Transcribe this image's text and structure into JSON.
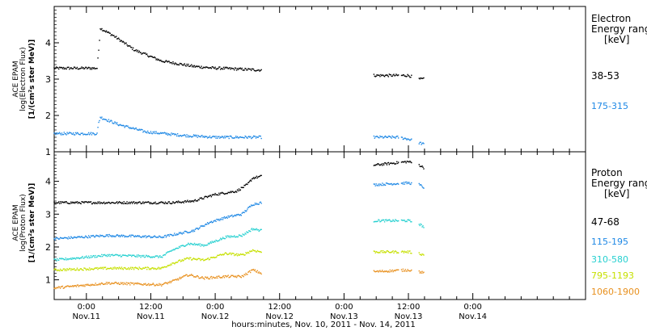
{
  "chart_data": {
    "type": "scatter",
    "x_unit": "hours",
    "x_origin": "2011-11-10 00:00",
    "xlim": [
      18,
      117
    ],
    "x_ticks": [
      {
        "h": 24,
        "time": "0:00",
        "date": "Nov.11"
      },
      {
        "h": 36,
        "time": "12:00",
        "date": "Nov.11"
      },
      {
        "h": 48,
        "time": "0:00",
        "date": "Nov.12"
      },
      {
        "h": 60,
        "time": "12:00",
        "date": "Nov.12"
      },
      {
        "h": 72,
        "time": "0:00",
        "date": "Nov.13"
      },
      {
        "h": 84,
        "time": "12:00",
        "date": "Nov.13"
      },
      {
        "h": 96,
        "time": "0:00",
        "date": "Nov.14"
      }
    ],
    "xlabel": "hours:minutes, Nov. 10, 2011 - Nov. 14, 2011",
    "panels": [
      {
        "id": "electron",
        "ylabel": [
          "ACE EPAM",
          "log(Electron Flux)",
          "[1/(cm²s ster MeV)]"
        ],
        "ylim": [
          1,
          5
        ],
        "y_ticks": [
          1,
          2,
          3,
          4
        ],
        "legend_title": [
          "Electron",
          "Energy range"
        ],
        "legend_unit": "[keV]",
        "series": [
          {
            "name": "38-53",
            "color": "#000000",
            "points": [
              [
                18,
                3.3
              ],
              [
                26,
                3.3
              ],
              [
                26.3,
                3.8
              ],
              [
                26.6,
                4.4
              ],
              [
                29,
                4.2
              ],
              [
                33,
                3.8
              ],
              [
                38,
                3.5
              ],
              [
                44,
                3.35
              ],
              [
                48,
                3.3
              ],
              [
                49,
                3.3
              ],
              [
                56,
                3.25
              ],
              [
                56.6,
                3.25
              ],
              [
                78,
                3.1
              ],
              [
                82,
                3.1
              ],
              [
                84,
                3.1
              ],
              [
                86,
                3.0
              ],
              [
                87,
                3.0
              ]
            ]
          },
          {
            "name": "175-315",
            "color": "#1e88e5",
            "points": [
              [
                18,
                1.5
              ],
              [
                26,
                1.5
              ],
              [
                26.3,
                1.8
              ],
              [
                26.6,
                1.95
              ],
              [
                30,
                1.75
              ],
              [
                35,
                1.55
              ],
              [
                42,
                1.45
              ],
              [
                48,
                1.4
              ],
              [
                56.6,
                1.4
              ],
              [
                78,
                1.4
              ],
              [
                82,
                1.4
              ],
              [
                84,
                1.35
              ],
              [
                87,
                1.2
              ]
            ]
          }
        ]
      },
      {
        "id": "proton",
        "ylabel": [
          "ACE EPAM",
          "log(Proton Flux)",
          "[1/(cm²s ster MeV)]"
        ],
        "ylim": [
          0.4,
          4.9
        ],
        "y_ticks": [
          1,
          2,
          3,
          4
        ],
        "legend_title": [
          "Proton",
          "Energy range"
        ],
        "legend_unit": "[keV]",
        "series": [
          {
            "name": "47-68",
            "color": "#000000",
            "points": [
              [
                18,
                3.35
              ],
              [
                30,
                3.35
              ],
              [
                40,
                3.35
              ],
              [
                44,
                3.4
              ],
              [
                48,
                3.6
              ],
              [
                52,
                3.7
              ],
              [
                54,
                3.9
              ],
              [
                55,
                4.1
              ],
              [
                56.6,
                4.15
              ],
              [
                78,
                4.5
              ],
              [
                84,
                4.6
              ],
              [
                86,
                4.5
              ],
              [
                87,
                4.4
              ]
            ]
          },
          {
            "name": "115-195",
            "color": "#1e88e5",
            "points": [
              [
                18,
                2.25
              ],
              [
                28,
                2.35
              ],
              [
                38,
                2.3
              ],
              [
                44,
                2.5
              ],
              [
                47,
                2.75
              ],
              [
                50,
                2.9
              ],
              [
                53,
                3.0
              ],
              [
                55,
                3.3
              ],
              [
                56.6,
                3.35
              ],
              [
                78,
                3.9
              ],
              [
                84,
                3.95
              ],
              [
                86,
                3.9
              ],
              [
                87,
                3.8
              ]
            ]
          },
          {
            "name": "310-580",
            "color": "#26d0d0",
            "points": [
              [
                18,
                1.6
              ],
              [
                28,
                1.75
              ],
              [
                38,
                1.7
              ],
              [
                40,
                1.9
              ],
              [
                43,
                2.1
              ],
              [
                46,
                2.05
              ],
              [
                50,
                2.3
              ],
              [
                53,
                2.35
              ],
              [
                55,
                2.55
              ],
              [
                56.6,
                2.5
              ],
              [
                78,
                2.8
              ],
              [
                84,
                2.8
              ],
              [
                86,
                2.7
              ],
              [
                87,
                2.6
              ]
            ]
          },
          {
            "name": "795-1193",
            "color": "#c6e000",
            "points": [
              [
                18,
                1.3
              ],
              [
                28,
                1.35
              ],
              [
                38,
                1.35
              ],
              [
                40,
                1.5
              ],
              [
                43,
                1.65
              ],
              [
                46,
                1.6
              ],
              [
                50,
                1.8
              ],
              [
                53,
                1.75
              ],
              [
                55,
                1.9
              ],
              [
                56.6,
                1.85
              ],
              [
                78,
                1.85
              ],
              [
                84,
                1.85
              ],
              [
                86,
                1.8
              ],
              [
                87,
                1.75
              ]
            ]
          },
          {
            "name": "1060-1900",
            "color": "#e8901e",
            "points": [
              [
                18,
                0.75
              ],
              [
                28,
                0.9
              ],
              [
                38,
                0.85
              ],
              [
                40,
                0.95
              ],
              [
                43,
                1.15
              ],
              [
                46,
                1.05
              ],
              [
                50,
                1.1
              ],
              [
                53,
                1.1
              ],
              [
                55,
                1.3
              ],
              [
                56.6,
                1.2
              ],
              [
                78,
                1.25
              ],
              [
                84,
                1.3
              ],
              [
                86,
                1.25
              ],
              [
                87,
                1.2
              ]
            ]
          }
        ]
      }
    ],
    "gaps": [
      [
        56.7,
        77.5
      ],
      [
        82.2,
        82.6
      ],
      [
        84.7,
        86.0
      ]
    ]
  }
}
